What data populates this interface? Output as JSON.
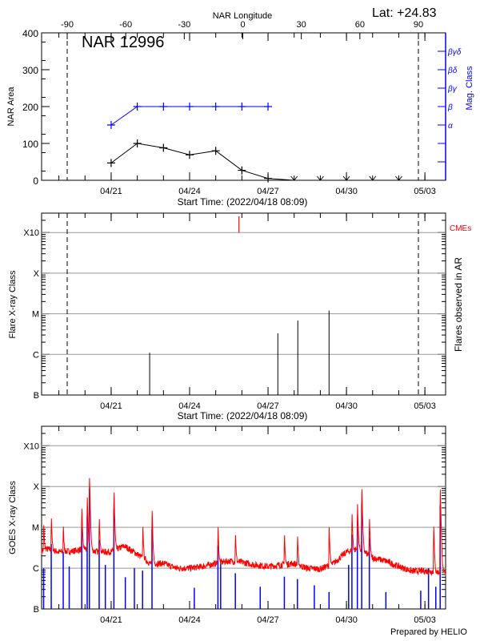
{
  "header": {
    "lat_label": "Lat: +24.83",
    "region_label": "NAR 12996",
    "footer": "Prepared by HELIO"
  },
  "colors": {
    "area": "#000000",
    "mag_class": "#0000ff",
    "cme": "#ff0000",
    "goes_long": "#ff0000",
    "goes_short": "#0000ff",
    "grid": "#999999"
  },
  "chart_data": [
    {
      "type": "line",
      "title": "NAR 12996",
      "top_xlabel": "NAR Longitude",
      "top_xticks": [
        -90,
        -60,
        -30,
        0,
        30,
        60,
        90
      ],
      "limb_longitudes": [
        -90,
        90
      ],
      "xlabel": "Start Time: (2022/04/18 08:09)",
      "xrange": [
        "2022-04-18T08:09",
        "2022-05-03T19:00"
      ],
      "xtick_labels": [
        {
          "t": "2022-04-21T00:00",
          "label": "04/21"
        },
        {
          "t": "2022-04-24T00:00",
          "label": "04/24"
        },
        {
          "t": "2022-04-27T00:00",
          "label": "04/27"
        },
        {
          "t": "2022-04-30T00:00",
          "label": "04/30"
        },
        {
          "t": "2022-05-03T00:00",
          "label": "05/03"
        }
      ],
      "ylabel": "NAR Area",
      "ylim": [
        0,
        400
      ],
      "yticks": [
        0,
        100,
        200,
        300,
        400
      ],
      "right_ylabel": "Mag. Class",
      "right_ticks": [
        {
          "v": 50,
          "label": ""
        },
        {
          "v": 100,
          "label": ""
        },
        {
          "v": 150,
          "label": "α"
        },
        {
          "v": 200,
          "label": "β"
        },
        {
          "v": 250,
          "label": "βγ"
        },
        {
          "v": 300,
          "label": "βδ"
        },
        {
          "v": 350,
          "label": "βγδ"
        }
      ],
      "area_series": {
        "dates": [
          "2022-04-21T00:00",
          "2022-04-22T00:00",
          "2022-04-23T00:00",
          "2022-04-24T00:00",
          "2022-04-25T00:00",
          "2022-04-26T00:00",
          "2022-04-27T00:00",
          "2022-04-28T00:00"
        ],
        "values": [
          47,
          100,
          88,
          69,
          80,
          27,
          5,
          0
        ]
      },
      "not_observed_dates": [
        "2022-04-28T00:00",
        "2022-04-29T00:00",
        "2022-04-30T00:00",
        "2022-05-01T00:00",
        "2022-05-02T00:00"
      ],
      "mag_series": {
        "dates": [
          "2022-04-21T00:00",
          "2022-04-22T00:00",
          "2022-04-23T00:00",
          "2022-04-24T00:00",
          "2022-04-25T00:00",
          "2022-04-26T00:00",
          "2022-04-27T00:00"
        ],
        "classes": [
          "α",
          "β",
          "β",
          "β",
          "β",
          "β",
          "β"
        ],
        "values": [
          150,
          200,
          200,
          200,
          200,
          200,
          200
        ]
      }
    },
    {
      "type": "bar",
      "xlabel": "Start Time: (2022/04/18 08:09)",
      "ylabel": "Flare X-ray Class",
      "right_ylabel": "Flares observed in AR",
      "yscale": "log",
      "ylim": [
        1e-07,
        0.003
      ],
      "class_ticks": [
        {
          "v": 1e-07,
          "label": "B"
        },
        {
          "v": 1e-06,
          "label": "C"
        },
        {
          "v": 1e-05,
          "label": "M"
        },
        {
          "v": 0.0001,
          "label": "X"
        },
        {
          "v": 0.001,
          "label": "X10"
        }
      ],
      "grid": true,
      "flares": [
        {
          "t": "2022-04-22T11:20",
          "flux": 1.1e-06
        },
        {
          "t": "2022-04-27T09:00",
          "flux": 3.3e-06
        },
        {
          "t": "2022-04-28T03:20",
          "flux": 6.8e-06
        },
        {
          "t": "2022-04-29T08:00",
          "flux": 1.2e-05
        }
      ],
      "cme_label": "CMEs",
      "cmes": [
        "2022-04-25T21:20"
      ]
    },
    {
      "type": "line",
      "ylabel": "GOES X-ray Class",
      "yscale": "log",
      "ylim": [
        1e-07,
        0.003
      ],
      "class_ticks": [
        {
          "v": 1e-07,
          "label": "B"
        },
        {
          "v": 1e-06,
          "label": "C"
        },
        {
          "v": 1e-05,
          "label": "M"
        },
        {
          "v": 0.0001,
          "label": "X"
        },
        {
          "v": 0.001,
          "label": "X10"
        }
      ],
      "grid": true,
      "long_channel_background": [
        [
          "2022-04-18T08:09",
          2.6e-06
        ],
        [
          "2022-04-18T12:00",
          3e-06
        ],
        [
          "2022-04-19T00:00",
          2.5e-06
        ],
        [
          "2022-04-19T12:00",
          2.6e-06
        ],
        [
          "2022-04-20T00:00",
          3e-06
        ],
        [
          "2022-04-20T12:00",
          2.5e-06
        ],
        [
          "2022-04-21T00:00",
          2.5e-06
        ],
        [
          "2022-04-21T12:00",
          3.5e-06
        ],
        [
          "2022-04-22T00:00",
          2.2e-06
        ],
        [
          "2022-04-22T12:00",
          1.3e-06
        ],
        [
          "2022-04-23T00:00",
          1.3e-06
        ],
        [
          "2022-04-23T12:00",
          1e-06
        ],
        [
          "2022-04-24T00:00",
          1e-06
        ],
        [
          "2022-04-24T12:00",
          1.1e-06
        ],
        [
          "2022-04-25T00:00",
          1.3e-06
        ],
        [
          "2022-04-25T12:00",
          1.5e-06
        ],
        [
          "2022-04-26T00:00",
          1.4e-06
        ],
        [
          "2022-04-26T12:00",
          1.2e-06
        ],
        [
          "2022-04-27T00:00",
          1.1e-06
        ],
        [
          "2022-04-27T12:00",
          1.2e-06
        ],
        [
          "2022-04-28T00:00",
          1.3e-06
        ],
        [
          "2022-04-28T12:00",
          1e-06
        ],
        [
          "2022-04-29T00:00",
          9.5e-07
        ],
        [
          "2022-04-29T12:00",
          1.3e-06
        ],
        [
          "2022-04-30T00:00",
          2.5e-06
        ],
        [
          "2022-04-30T12:00",
          3e-06
        ],
        [
          "2022-05-01T00:00",
          1.8e-06
        ],
        [
          "2022-05-01T12:00",
          1.5e-06
        ],
        [
          "2022-05-02T00:00",
          1.1e-06
        ],
        [
          "2022-05-02T12:00",
          8.5e-07
        ],
        [
          "2022-05-03T00:00",
          8.5e-07
        ],
        [
          "2022-05-03T12:00",
          8e-07
        ],
        [
          "2022-05-03T19:00",
          7.5e-07
        ]
      ],
      "long_channel_peaks": [
        [
          "2022-04-18T10:00",
          1.2e-05
        ],
        [
          "2022-04-18T17:00",
          2e-05
        ],
        [
          "2022-04-19T04:00",
          1.1e-05
        ],
        [
          "2022-04-19T21:00",
          3.7e-05
        ],
        [
          "2022-04-20T02:00",
          7.4e-05
        ],
        [
          "2022-04-20T04:00",
          0.00023
        ],
        [
          "2022-04-20T13:00",
          2e-05
        ],
        [
          "2022-04-21T02:30",
          0.0001
        ],
        [
          "2022-04-22T05:00",
          1.2e-05
        ],
        [
          "2022-04-22T13:30",
          3.5e-05
        ],
        [
          "2022-04-25T02:00",
          1.3e-05
        ],
        [
          "2022-04-25T18:00",
          7.5e-06
        ],
        [
          "2022-04-27T15:00",
          7.7e-06
        ],
        [
          "2022-04-28T03:00",
          7e-06
        ],
        [
          "2022-04-29T08:00",
          1.3e-05
        ],
        [
          "2022-04-30T05:00",
          2.7e-05
        ],
        [
          "2022-04-30T10:00",
          5e-05
        ],
        [
          "2022-04-30T14:00",
          0.00012
        ],
        [
          "2022-04-30T21:00",
          2e-05
        ],
        [
          "2022-05-03T08:00",
          1.4e-05
        ],
        [
          "2022-05-03T14:00",
          0.00012
        ]
      ],
      "short_channel_peaks": [
        [
          "2022-04-18T10:00",
          1e-06
        ],
        [
          "2022-04-18T17:00",
          3.9e-06
        ],
        [
          "2022-04-19T04:00",
          2.5e-06
        ],
        [
          "2022-04-19T09:30",
          1.1e-06
        ],
        [
          "2022-04-19T21:00",
          9.8e-06
        ],
        [
          "2022-04-20T02:00",
          1.9e-05
        ],
        [
          "2022-04-20T04:00",
          8.9e-05
        ],
        [
          "2022-04-20T13:00",
          4.9e-06
        ],
        [
          "2022-04-20T18:40",
          1.2e-06
        ],
        [
          "2022-04-21T02:30",
          2.8e-05
        ],
        [
          "2022-04-21T13:00",
          6e-07
        ],
        [
          "2022-04-21T21:20",
          1e-06
        ],
        [
          "2022-04-22T04:50",
          8.7e-07
        ],
        [
          "2022-04-22T13:30",
          9e-06
        ],
        [
          "2022-04-24T04:20",
          3.3e-07
        ],
        [
          "2022-04-25T02:00",
          3.6e-06
        ],
        [
          "2022-04-25T04:30",
          1.3e-06
        ],
        [
          "2022-04-25T18:00",
          7.5e-07
        ],
        [
          "2022-04-26T16:50",
          3.5e-07
        ],
        [
          "2022-04-27T15:00",
          6.2e-07
        ],
        [
          "2022-04-28T03:00",
          5.4e-07
        ],
        [
          "2022-04-28T18:30",
          3.8e-07
        ],
        [
          "2022-04-29T08:00",
          2.6e-07
        ],
        [
          "2022-04-30T02:00",
          1.2e-06
        ],
        [
          "2022-04-30T05:00",
          6.6e-06
        ],
        [
          "2022-04-30T10:00",
          1.4e-05
        ],
        [
          "2022-04-30T14:00",
          3.7e-05
        ],
        [
          "2022-04-30T21:00",
          5.5e-06
        ],
        [
          "2022-05-01T12:10",
          2.6e-07
        ],
        [
          "2022-05-02T20:10",
          2.8e-07
        ],
        [
          "2022-05-03T03:20",
          1e-06
        ],
        [
          "2022-05-03T10:00",
          3.5e-07
        ],
        [
          "2022-05-03T14:00",
          3.4e-05
        ]
      ]
    }
  ]
}
